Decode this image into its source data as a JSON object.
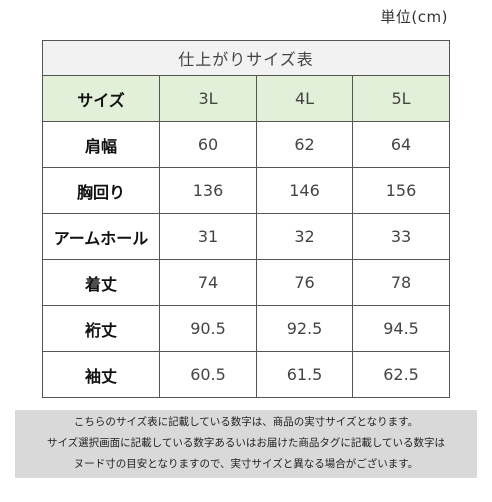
{
  "unit_label": "単位(cm)",
  "table": {
    "title": "仕上がりサイズ表",
    "header": {
      "label": "サイズ",
      "sizes": [
        "3L",
        "4L",
        "5L"
      ]
    },
    "rows": [
      {
        "label": "肩幅",
        "values": [
          "60",
          "62",
          "64"
        ]
      },
      {
        "label": "胸回り",
        "values": [
          "136",
          "146",
          "156"
        ]
      },
      {
        "label": "アームホール",
        "values": [
          "31",
          "32",
          "33"
        ]
      },
      {
        "label": "着丈",
        "values": [
          "74",
          "76",
          "78"
        ]
      },
      {
        "label": "裄丈",
        "values": [
          "90.5",
          "92.5",
          "94.5"
        ]
      },
      {
        "label": "袖丈",
        "values": [
          "60.5",
          "61.5",
          "62.5"
        ]
      }
    ]
  },
  "note": {
    "lines": [
      "こちらのサイズ表に記載している数字は、商品の実寸サイズとなります。",
      "サイズ選択画面に記載している数字あるいはお届けた商品タグに記載している数字は",
      "ヌード寸の目安となりますので、実寸サイズと異なる場合がございます。"
    ]
  },
  "colors": {
    "title_bg": "#f2f2f2",
    "header_bg": "#e3f0d9",
    "note_bg": "#d9d9d9",
    "border": "#555555"
  }
}
